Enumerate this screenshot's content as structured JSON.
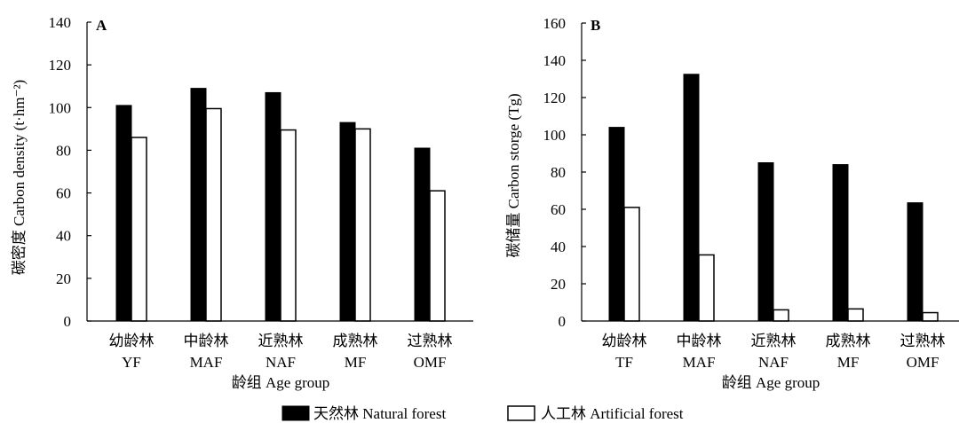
{
  "chart_data": [
    {
      "type": "bar",
      "panel": "A",
      "ylabel": "碳密度 Carbon density (t·hm⁻²)",
      "xlabel": "龄组 Age group",
      "ylim": [
        0,
        140
      ],
      "yticks": [
        0,
        20,
        40,
        60,
        80,
        100,
        120,
        140
      ],
      "categories": [
        {
          "zh": "幼龄林",
          "en": "YF"
        },
        {
          "zh": "中龄林",
          "en": "MAF"
        },
        {
          "zh": "近熟林",
          "en": "NAF"
        },
        {
          "zh": "成熟林",
          "en": "MF"
        },
        {
          "zh": "过熟林",
          "en": "OMF"
        }
      ],
      "series": [
        {
          "name": "天然林 Natural forest",
          "color": "#000000",
          "values": [
            101,
            109,
            107,
            93,
            81
          ]
        },
        {
          "name": "人工林 Artificial forest",
          "color": "#ffffff",
          "values": [
            86,
            99.5,
            89.5,
            90,
            61
          ]
        }
      ],
      "grid": false
    },
    {
      "type": "bar",
      "panel": "B",
      "ylabel": "碳储量 Carbon storge (Tg)",
      "xlabel": "龄组 Age group",
      "ylim": [
        0,
        160
      ],
      "yticks": [
        0,
        20,
        40,
        60,
        80,
        100,
        120,
        140,
        160
      ],
      "categories": [
        {
          "zh": "幼龄林",
          "en": "TF"
        },
        {
          "zh": "中龄林",
          "en": "MAF"
        },
        {
          "zh": "近熟林",
          "en": "NAF"
        },
        {
          "zh": "成熟林",
          "en": "MF"
        },
        {
          "zh": "过熟林",
          "en": "OMF"
        }
      ],
      "series": [
        {
          "name": "天然林 Natural forest",
          "color": "#000000",
          "values": [
            104,
            132.5,
            85,
            84,
            63.5
          ]
        },
        {
          "name": "人工林 Artificial forest",
          "color": "#ffffff",
          "values": [
            61,
            35.5,
            6,
            6.5,
            4.5
          ]
        }
      ],
      "grid": false
    }
  ],
  "legend": {
    "placement": "bottom-center",
    "items": [
      {
        "label": "天然林 Natural forest",
        "color": "#000000"
      },
      {
        "label": "人工林 Artificial forest",
        "color": "#ffffff"
      }
    ]
  }
}
